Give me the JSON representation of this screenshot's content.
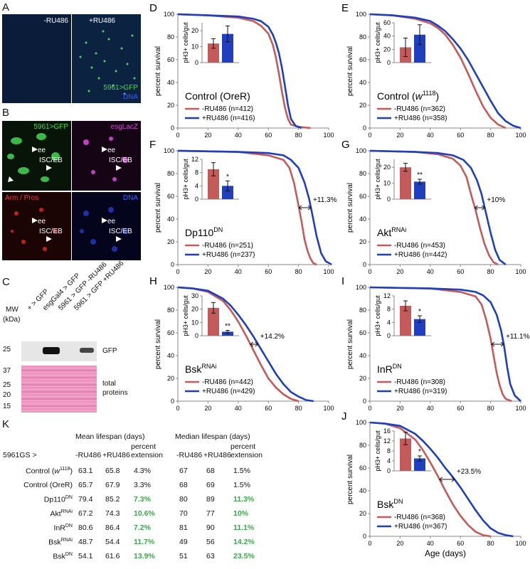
{
  "panels": {
    "A": {
      "label": "A",
      "left_caption": "-RU486",
      "right_caption": "+RU486",
      "gfp_label": "5961>GFP",
      "dna_label": "DNA"
    },
    "B": {
      "label": "B",
      "tl": "5961>GFP",
      "tr": "esgLacZ",
      "bl": "Arm / Pros",
      "br": "DNA",
      "ee": "ee",
      "isc": "ISC/EB"
    },
    "C": {
      "label": "C",
      "mw": "MW",
      "kda": "(kDa)",
      "lanes": [
        "+ > GFP",
        "esgGal4 > GFP",
        "5961 > GFP -RU486",
        "5961 > GFP +RU486"
      ],
      "mw_top": [
        "25"
      ],
      "mw_bottom": [
        "37",
        "25",
        "20",
        "15"
      ],
      "gfp": "GFP",
      "total_line1": "total",
      "total_line2": "proteins"
    },
    "K": {
      "label": "K"
    }
  },
  "colors": {
    "minus": "#c45a5a",
    "plus": "#1f3fbf",
    "green": "#3aa84a"
  },
  "chart_data": [
    {
      "panel": "D",
      "type": "line",
      "title": "Control (OreR)",
      "xlabel": "",
      "ylabel": "percent survival",
      "xlim": [
        0,
        100
      ],
      "ylim": [
        0,
        100
      ],
      "xticks": [
        0,
        20,
        40,
        60,
        80,
        100
      ],
      "yticks": [
        0,
        20,
        40,
        60,
        80,
        100
      ],
      "series": [
        {
          "name": "-RU486 (n=412)",
          "color": "#c45a5a",
          "x": [
            0,
            20,
            40,
            50,
            55,
            60,
            63,
            65,
            67,
            69,
            71,
            73,
            75,
            80,
            88
          ],
          "y": [
            100,
            99,
            97,
            94,
            90,
            83,
            73,
            62,
            48,
            32,
            18,
            8,
            3,
            1,
            0
          ]
        },
        {
          "name": "+RU486 (n=416)",
          "color": "#1f3fbf",
          "x": [
            0,
            20,
            40,
            50,
            55,
            60,
            63,
            65,
            67,
            69,
            71,
            73,
            75,
            78,
            82
          ],
          "y": [
            100,
            99,
            98,
            96,
            94,
            89,
            82,
            75,
            66,
            53,
            37,
            20,
            8,
            2,
            0
          ]
        }
      ],
      "inset": {
        "ylabel": "pH3+ cells/gut",
        "yticks": [
          0,
          10,
          20
        ],
        "ymax": 25,
        "minus": 12,
        "minus_err": 3,
        "plus": 18,
        "plus_err": 5,
        "sig": ""
      },
      "annotation": ""
    },
    {
      "panel": "E",
      "type": "line",
      "title": "Control (w1118)",
      "xlabel": "",
      "ylabel": "percent survival",
      "xlim": [
        0,
        100
      ],
      "ylim": [
        0,
        100
      ],
      "xticks": [
        0,
        20,
        40,
        60,
        80,
        100
      ],
      "yticks": [
        0,
        20,
        40,
        60,
        80,
        100
      ],
      "series": [
        {
          "name": "-RU486 (n=362)",
          "color": "#c45a5a",
          "x": [
            0,
            15,
            30,
            40,
            45,
            50,
            55,
            60,
            65,
            70,
            75,
            80,
            85,
            90
          ],
          "y": [
            100,
            99,
            96,
            92,
            88,
            82,
            73,
            62,
            48,
            33,
            19,
            9,
            3,
            0
          ]
        },
        {
          "name": "+RU486 (n=358)",
          "color": "#1f3fbf",
          "x": [
            0,
            15,
            30,
            40,
            45,
            50,
            55,
            60,
            65,
            70,
            75,
            80,
            85,
            90,
            95,
            100
          ],
          "y": [
            100,
            99,
            97,
            94,
            90,
            85,
            78,
            70,
            60,
            48,
            36,
            24,
            13,
            6,
            2,
            0
          ]
        }
      ],
      "inset": {
        "ylabel": "pH3+ cells/gut",
        "yticks": [
          0,
          20,
          40,
          60
        ],
        "ymax": 60,
        "minus": 23,
        "minus_err": 14,
        "plus": 42,
        "plus_err": 15,
        "sig": ""
      },
      "annotation": ""
    },
    {
      "panel": "F",
      "type": "line",
      "title": "Dp110DN",
      "xlabel": "",
      "ylabel": "percent survival",
      "xlim": [
        0,
        100
      ],
      "ylim": [
        0,
        100
      ],
      "xticks": [
        0,
        20,
        40,
        60,
        80,
        100
      ],
      "yticks": [
        0,
        20,
        40,
        60,
        80,
        100
      ],
      "series": [
        {
          "name": "-RU486 (n=251)",
          "color": "#c45a5a",
          "x": [
            0,
            40,
            60,
            70,
            74,
            77,
            80,
            82,
            84,
            86,
            88,
            90,
            92
          ],
          "y": [
            100,
            99,
            96,
            92,
            85,
            72,
            52,
            38,
            22,
            12,
            5,
            1,
            0
          ]
        },
        {
          "name": "+RU486 (n=237)",
          "color": "#1f3fbf",
          "x": [
            0,
            40,
            60,
            70,
            75,
            80,
            84,
            87,
            89,
            92,
            95,
            98,
            102
          ],
          "y": [
            100,
            99,
            98,
            96,
            92,
            85,
            72,
            58,
            45,
            25,
            10,
            3,
            0
          ]
        }
      ],
      "inset": {
        "ylabel": "pH3+ cells/gut",
        "yticks": [
          0,
          4,
          8,
          12
        ],
        "ymax": 12,
        "minus": 9,
        "minus_err": 2,
        "plus": 4,
        "plus_err": 1.5,
        "sig": "*"
      },
      "annotation": "+11.3%"
    },
    {
      "panel": "G",
      "type": "line",
      "title": "AktRNAi",
      "xlabel": "",
      "ylabel": "percent survival",
      "xlim": [
        0,
        100
      ],
      "ylim": [
        0,
        100
      ],
      "xticks": [
        0,
        20,
        40,
        60,
        80,
        100
      ],
      "yticks": [
        0,
        20,
        40,
        60,
        80,
        100
      ],
      "series": [
        {
          "name": "-RU486 (n=453)",
          "color": "#c45a5a",
          "x": [
            0,
            30,
            45,
            55,
            60,
            64,
            67,
            70,
            73,
            76,
            79,
            82,
            85
          ],
          "y": [
            100,
            99,
            97,
            93,
            87,
            77,
            62,
            48,
            32,
            18,
            8,
            2,
            0
          ]
        },
        {
          "name": "+RU486 (n=442)",
          "color": "#1f3fbf",
          "x": [
            0,
            30,
            45,
            55,
            62,
            67,
            71,
            74,
            77,
            80,
            83,
            86,
            90
          ],
          "y": [
            100,
            99,
            98,
            96,
            92,
            85,
            74,
            62,
            45,
            28,
            13,
            4,
            0
          ]
        }
      ],
      "inset": {
        "ylabel": "pH3+ cells/gut",
        "yticks": [
          0,
          10,
          20
        ],
        "ymax": 25,
        "minus": 20,
        "minus_err": 2.5,
        "plus": 11,
        "plus_err": 1.5,
        "sig": "**"
      },
      "annotation": "+10%"
    },
    {
      "panel": "H",
      "type": "line",
      "title": "BskRNAi",
      "xlabel": "",
      "ylabel": "percent survival",
      "xlim": [
        0,
        100
      ],
      "ylim": [
        0,
        100
      ],
      "xticks": [
        0,
        20,
        40,
        60,
        80,
        100
      ],
      "yticks": [
        0,
        20,
        40,
        60,
        80,
        100
      ],
      "series": [
        {
          "name": "-RU486 (n=442)",
          "color": "#c45a5a",
          "x": [
            0,
            10,
            20,
            30,
            35,
            40,
            45,
            50,
            55,
            60,
            65,
            70,
            75,
            80
          ],
          "y": [
            100,
            99,
            96,
            88,
            80,
            70,
            58,
            45,
            32,
            20,
            12,
            6,
            2,
            0
          ]
        },
        {
          "name": "+RU486 (n=429)",
          "color": "#1f3fbf",
          "x": [
            0,
            10,
            20,
            30,
            35,
            40,
            45,
            50,
            55,
            60,
            65,
            70,
            75,
            80,
            85,
            90
          ],
          "y": [
            100,
            99,
            97,
            90,
            84,
            76,
            67,
            57,
            46,
            35,
            24,
            15,
            8,
            4,
            1,
            0
          ]
        }
      ],
      "inset": {
        "ylabel": "pH3+ cells/gut",
        "yticks": [
          0,
          10,
          20,
          30
        ],
        "ymax": 30,
        "minus": 21,
        "minus_err": 4,
        "plus": 3,
        "plus_err": 1,
        "sig": "**"
      },
      "annotation": "+14.2%"
    },
    {
      "panel": "I",
      "type": "line",
      "title": "InRDN",
      "xlabel": "",
      "ylabel": "percent survival",
      "xlim": [
        0,
        100
      ],
      "ylim": [
        0,
        100
      ],
      "xticks": [
        0,
        20,
        40,
        60,
        80,
        100
      ],
      "yticks": [
        0,
        20,
        40,
        60,
        80,
        100
      ],
      "series": [
        {
          "name": "-RU486 (n=308)",
          "color": "#c45a5a",
          "x": [
            0,
            40,
            60,
            70,
            74,
            77,
            80,
            82,
            84,
            86,
            88,
            90,
            94
          ],
          "y": [
            100,
            99,
            96,
            92,
            85,
            72,
            55,
            40,
            25,
            14,
            6,
            2,
            0
          ]
        },
        {
          "name": "+RU486 (n=319)",
          "color": "#1f3fbf",
          "x": [
            0,
            40,
            60,
            70,
            75,
            80,
            84,
            87,
            89,
            91,
            93,
            96,
            100
          ],
          "y": [
            100,
            99,
            98,
            96,
            93,
            87,
            76,
            62,
            48,
            30,
            15,
            5,
            0
          ]
        }
      ],
      "inset": {
        "ylabel": "pH3+ cells/gut",
        "yticks": [
          0,
          4,
          8,
          12
        ],
        "ymax": 12,
        "minus": 9,
        "minus_err": 1.5,
        "plus": 5,
        "plus_err": 1,
        "sig": "*"
      },
      "annotation": "+11.1%"
    },
    {
      "panel": "J",
      "type": "line",
      "title": "BskDN",
      "xlabel": "Age (days)",
      "ylabel": "percent survival",
      "xlim": [
        0,
        100
      ],
      "ylim": [
        0,
        100
      ],
      "xticks": [
        0,
        20,
        40,
        60,
        80,
        100
      ],
      "yticks": [
        0,
        20,
        40,
        60,
        80,
        100
      ],
      "series": [
        {
          "name": "-RU486 (n=368)",
          "color": "#c45a5a",
          "x": [
            0,
            10,
            20,
            30,
            35,
            40,
            45,
            50,
            55,
            60,
            65,
            70,
            75,
            80
          ],
          "y": [
            100,
            99,
            95,
            85,
            76,
            65,
            53,
            40,
            28,
            18,
            10,
            4,
            1,
            0
          ]
        },
        {
          "name": "+RU486 (n=367)",
          "color": "#1f3fbf",
          "x": [
            0,
            10,
            20,
            30,
            35,
            40,
            45,
            50,
            55,
            60,
            65,
            70,
            75,
            80,
            85,
            90,
            95
          ],
          "y": [
            100,
            99,
            97,
            90,
            84,
            77,
            69,
            60,
            52,
            43,
            33,
            23,
            14,
            7,
            3,
            1,
            0
          ]
        }
      ],
      "inset": {
        "ylabel": "pH3+ cells/gut",
        "yticks": [
          0,
          4,
          8,
          12,
          16
        ],
        "ymax": 16,
        "minus": 13,
        "minus_err": 2.5,
        "plus": 5,
        "plus_err": 1,
        "sig": "*"
      },
      "annotation": "+23.5%"
    }
  ],
  "age_label": "Age (days)",
  "table": {
    "label": "K",
    "rowhead": "5961GS >",
    "group1": "Mean lifespan (days)",
    "group2": "Median lifespan (days)",
    "sub": [
      "-RU486",
      "+RU486",
      "percent extension",
      "-RU486",
      "+RU486",
      "percent extension"
    ],
    "rows": [
      {
        "name": "Control (w1118)",
        "v": [
          "63.1",
          "65.8",
          "4.3%",
          "67",
          "68",
          "1.5%"
        ],
        "green": [
          false,
          false
        ]
      },
      {
        "name": "Control (OreR)",
        "v": [
          "65.7",
          "67.9",
          "3.3%",
          "68",
          "69",
          "1.5%"
        ],
        "green": [
          false,
          false
        ]
      },
      {
        "name": "Dp110DN",
        "v": [
          "79.4",
          "85.2",
          "7.3%",
          "80",
          "89",
          "11.3%"
        ],
        "green": [
          true,
          true
        ]
      },
      {
        "name": "AktRNAi",
        "v": [
          "67.2",
          "74.3",
          "10.6%",
          "70",
          "77",
          "10%"
        ],
        "green": [
          true,
          true
        ]
      },
      {
        "name": "InRDN",
        "v": [
          "80.6",
          "86.4",
          "7.2%",
          "81",
          "90",
          "11.1%"
        ],
        "green": [
          true,
          true
        ]
      },
      {
        "name": "BskRNAi",
        "v": [
          "48.7",
          "54.4",
          "11.7%",
          "49",
          "56",
          "14.2%"
        ],
        "green": [
          true,
          true
        ]
      },
      {
        "name": "BskDN",
        "v": [
          "54.1",
          "61.6",
          "13.9%",
          "51",
          "63",
          "23.5%"
        ],
        "green": [
          true,
          true
        ]
      }
    ]
  }
}
